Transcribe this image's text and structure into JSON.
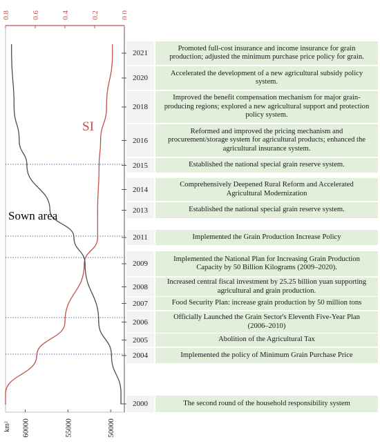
{
  "colors": {
    "si_line": "#c0504d",
    "sown_line": "#4d4d4d",
    "axis": "#c0504d",
    "event_bg": "#e2efda",
    "grid_dash": "#1f3a93"
  },
  "chart_data": {
    "type": "line",
    "annotations": {
      "si_label": "SI",
      "sown_label": "Sown area"
    },
    "top_axis": {
      "ticks": [
        "0.8",
        "0.6",
        "0.4",
        "0.2",
        "0.0"
      ],
      "range": [
        0.8,
        0.0
      ]
    },
    "bottom_axis": {
      "unit": "km²",
      "ticks": [
        "60000",
        "55000",
        "50000"
      ],
      "range": [
        62300,
        48400
      ]
    },
    "series": [
      {
        "name": "SI",
        "points": [
          {
            "year": 2000,
            "value": 0.8
          },
          {
            "year": 2004,
            "value": 0.59
          },
          {
            "year": 2006,
            "value": 0.4
          },
          {
            "year": 2009,
            "value": 0.27
          },
          {
            "year": 2011,
            "value": 0.18
          },
          {
            "year": 2013,
            "value": 0.18
          },
          {
            "year": 2015,
            "value": 0.17
          },
          {
            "year": 2016,
            "value": 0.16
          },
          {
            "year": 2018,
            "value": 0.12
          },
          {
            "year": 2021,
            "value": 0.08
          }
        ]
      },
      {
        "name": "Sown area",
        "points": [
          {
            "year": 2000,
            "value": 48800
          },
          {
            "year": 2004,
            "value": 49900
          },
          {
            "year": 2006,
            "value": 51400
          },
          {
            "year": 2009,
            "value": 53000
          },
          {
            "year": 2011,
            "value": 54300
          },
          {
            "year": 2013,
            "value": 57100
          },
          {
            "year": 2015,
            "value": 59800
          },
          {
            "year": 2016,
            "value": 60700
          },
          {
            "year": 2018,
            "value": 61300
          },
          {
            "year": 2021,
            "value": 61600
          }
        ]
      }
    ]
  },
  "timeline": [
    {
      "year": "2021",
      "text": "Promoted full-cost insurance and income insurance for grain production; adjusted the minimum purchase price policy for grain."
    },
    {
      "year": "2020",
      "text": "Accelerated the development of a new agricultural subsidy policy system."
    },
    {
      "year": "2018",
      "text": "Improved the benefit compensation mechanism for major grain-producing regions; explored a new agricultural support and protection policy system."
    },
    {
      "year": "2016",
      "text": "Reformed and improved the pricing mechanism and procurement/storage system for agricultural products; enhanced the agricultural insurance system."
    },
    {
      "year": "2015",
      "text": "Established the national special grain reserve system."
    },
    {
      "year": "2014",
      "text": "Comprehensively Deepened Rural Reform and Accelerated Agricultural Modernization"
    },
    {
      "year": "2013",
      "text": "Established the national special grain reserve system."
    },
    {
      "year": "2011",
      "text": "Implemented the Grain Production Increase Policy"
    },
    {
      "year": "2009",
      "text": "Implemented the   National Plan for Increasing Grain Production Capacity by 50 Billion Kilograms (2009–2020)."
    },
    {
      "year": "2008",
      "text": "Increased central fiscal investment by 25.25 billion yuan supporting agricultural and grain production."
    },
    {
      "year": "2007",
      "text": "Food Security Plan: increase grain production by 50 million tons"
    },
    {
      "year": "2006",
      "text": "Officially Launched the Grain Sector's Eleventh Five-Year Plan (2006–2010)"
    },
    {
      "year": "2005",
      "text": "Abolition of the Agricultural Tax"
    },
    {
      "year": "2004",
      "text": "Implemented the policy of Minimum Grain Purchase Price"
    },
    {
      "year": "2000",
      "text": "The second round of the household responsibility system"
    }
  ]
}
